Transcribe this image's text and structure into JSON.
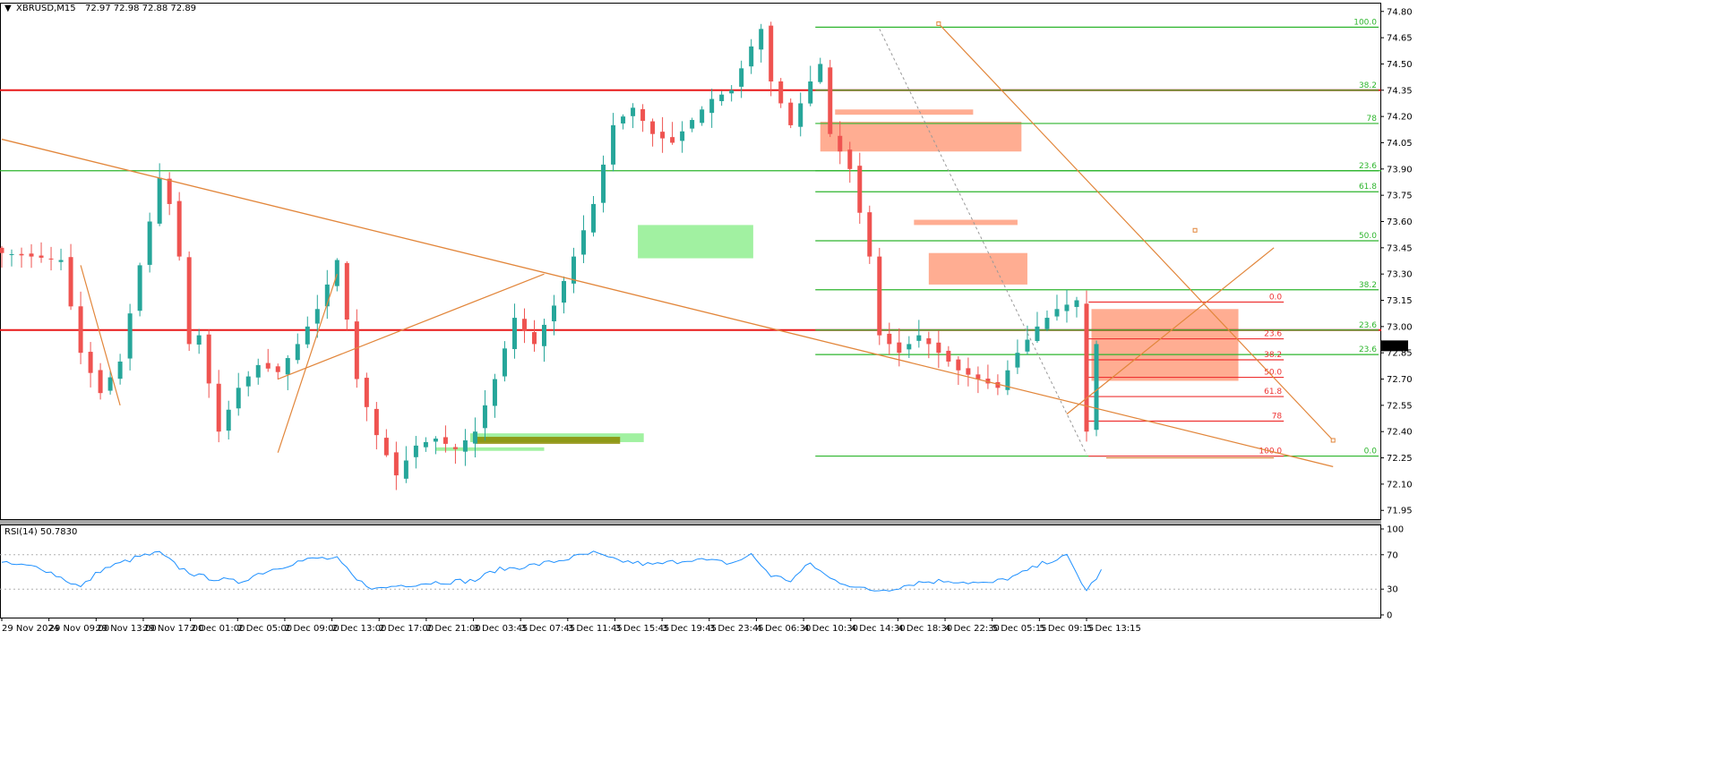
{
  "header": {
    "symbol": "XBRUSD,M15",
    "ohlc": "72.97 72.98 72.88 72.89"
  },
  "rsi_header": {
    "label": "RSI(14) 50.7830"
  },
  "colors": {
    "bull": "#26a69a",
    "bear": "#ef5350",
    "hline_red": "#e81919",
    "hline_green": "#2db52d",
    "trend": "#e2863b",
    "supply": "#ff9f7f",
    "demand": "#90ee90",
    "rsi": "#1e90ff"
  },
  "chart_data": [
    {
      "type": "candlestick",
      "title": "XBRUSD,M15",
      "ylim": [
        71.9,
        74.85
      ],
      "y_ticks": [
        "74.80",
        "74.65",
        "74.50",
        "74.35",
        "74.20",
        "74.05",
        "73.90",
        "73.75",
        "73.60",
        "73.45",
        "73.30",
        "73.15",
        "73.00",
        "72.85",
        "72.70",
        "72.55",
        "72.40",
        "72.25",
        "72.10",
        "71.95"
      ],
      "x_ticks": [
        "29 Nov 2024",
        "29 Nov 09:00",
        "29 Nov 13:00",
        "29 Nov 17:00",
        "2 Dec 01:00",
        "2 Dec 05:00",
        "2 Dec 09:00",
        "2 Dec 13:00",
        "2 Dec 17:00",
        "2 Dec 21:00",
        "3 Dec 03:45",
        "3 Dec 07:45",
        "3 Dec 11:45",
        "3 Dec 15:45",
        "3 Dec 19:45",
        "3 Dec 23:45",
        "4 Dec 06:30",
        "4 Dec 10:30",
        "4 Dec 14:30",
        "4 Dec 18:30",
        "4 Dec 22:30",
        "5 Dec 05:15",
        "5 Dec 09:15",
        "5 Dec 13:15"
      ],
      "current_price": "72.89",
      "close_path": [
        [
          0,
          73.42
        ],
        [
          3,
          73.4
        ],
        [
          6,
          73.38
        ],
        [
          8,
          72.85
        ],
        [
          10,
          72.62
        ],
        [
          12,
          72.8
        ],
        [
          14,
          73.35
        ],
        [
          16,
          73.85
        ],
        [
          17,
          73.7
        ],
        [
          18,
          73.4
        ],
        [
          19,
          72.9
        ],
        [
          20,
          72.95
        ],
        [
          22,
          72.4
        ],
        [
          24,
          72.65
        ],
        [
          26,
          72.78
        ],
        [
          28,
          72.74
        ],
        [
          30,
          72.9
        ],
        [
          32,
          73.1
        ],
        [
          34,
          73.38
        ],
        [
          36,
          72.7
        ],
        [
          38,
          72.38
        ],
        [
          40,
          72.15
        ],
        [
          42,
          72.32
        ],
        [
          44,
          72.36
        ],
        [
          46,
          72.3
        ],
        [
          48,
          72.4
        ],
        [
          50,
          72.7
        ],
        [
          52,
          73.05
        ],
        [
          54,
          72.9
        ],
        [
          56,
          73.12
        ],
        [
          58,
          73.4
        ],
        [
          60,
          73.7
        ],
        [
          62,
          74.15
        ],
        [
          64,
          74.25
        ],
        [
          66,
          74.1
        ],
        [
          68,
          74.05
        ],
        [
          70,
          74.18
        ],
        [
          72,
          74.3
        ],
        [
          74,
          74.35
        ],
        [
          76,
          74.6
        ],
        [
          77,
          74.7
        ],
        [
          78,
          74.4
        ],
        [
          80,
          74.15
        ],
        [
          82,
          74.4
        ],
        [
          83,
          74.5
        ],
        [
          84,
          74.1
        ],
        [
          86,
          73.9
        ],
        [
          88,
          73.4
        ],
        [
          89,
          72.95
        ],
        [
          91,
          72.85
        ],
        [
          93,
          72.95
        ],
        [
          95,
          72.85
        ],
        [
          97,
          72.75
        ],
        [
          99,
          72.7
        ],
        [
          101,
          72.65
        ],
        [
          103,
          72.85
        ],
        [
          105,
          73.0
        ],
        [
          107,
          73.1
        ],
        [
          109,
          73.15
        ],
        [
          110,
          72.4
        ],
        [
          111,
          72.9
        ],
        [
          111.5,
          72.89
        ]
      ],
      "horizontal_levels": [
        {
          "price": 74.35,
          "color": "red"
        },
        {
          "price": 72.98,
          "color": "red"
        },
        {
          "price": 73.89,
          "color": "green"
        }
      ],
      "fib_sets": [
        {
          "color": "green",
          "levels": [
            {
              "label": "100.0",
              "price": 74.71
            },
            {
              "label": "38.2",
              "price": 74.35
            },
            {
              "label": "78",
              "price": 74.16
            },
            {
              "label": "23.6",
              "price": 73.89
            },
            {
              "label": "61.8",
              "price": 73.77
            },
            {
              "label": "50.0",
              "price": 73.49
            },
            {
              "label": "38.2",
              "price": 73.21
            },
            {
              "label": "23.6",
              "price": 72.98
            },
            {
              "label": "23.6",
              "price": 72.84
            },
            {
              "label": "0.0",
              "price": 72.26
            }
          ]
        },
        {
          "color": "red",
          "levels": [
            {
              "label": "0.0",
              "price": 73.14
            },
            {
              "label": "23.6",
              "price": 72.93
            },
            {
              "label": "38.2",
              "price": 72.81
            },
            {
              "label": "50.0",
              "price": 72.71
            },
            {
              "label": "61.8",
              "price": 72.6
            },
            {
              "label": "78",
              "price": 72.46
            },
            {
              "label": "100.0",
              "price": 72.26
            }
          ]
        }
      ]
    },
    {
      "type": "line",
      "title": "RSI(14) 50.7830",
      "ylim": [
        0,
        100
      ],
      "y_ticks": [
        "100",
        "70",
        "30",
        "0"
      ],
      "levels": [
        70,
        30
      ],
      "last_value": 50.783,
      "anchors": [
        [
          0,
          60
        ],
        [
          4,
          55
        ],
        [
          8,
          32
        ],
        [
          10,
          52
        ],
        [
          14,
          68
        ],
        [
          16,
          72
        ],
        [
          18,
          55
        ],
        [
          20,
          45
        ],
        [
          24,
          38
        ],
        [
          26,
          48
        ],
        [
          30,
          62
        ],
        [
          32,
          66
        ],
        [
          34,
          65
        ],
        [
          36,
          40
        ],
        [
          38,
          30
        ],
        [
          40,
          34
        ],
        [
          44,
          38
        ],
        [
          48,
          40
        ],
        [
          50,
          52
        ],
        [
          54,
          58
        ],
        [
          56,
          62
        ],
        [
          60,
          72
        ],
        [
          62,
          64
        ],
        [
          66,
          58
        ],
        [
          70,
          65
        ],
        [
          74,
          60
        ],
        [
          76,
          70
        ],
        [
          78,
          46
        ],
        [
          80,
          40
        ],
        [
          82,
          60
        ],
        [
          84,
          42
        ],
        [
          86,
          35
        ],
        [
          88,
          28
        ],
        [
          90,
          30
        ],
        [
          93,
          38
        ],
        [
          96,
          40
        ],
        [
          98,
          38
        ],
        [
          100,
          36
        ],
        [
          103,
          46
        ],
        [
          106,
          62
        ],
        [
          108,
          68
        ],
        [
          110,
          28
        ],
        [
          111.5,
          51
        ]
      ]
    }
  ]
}
